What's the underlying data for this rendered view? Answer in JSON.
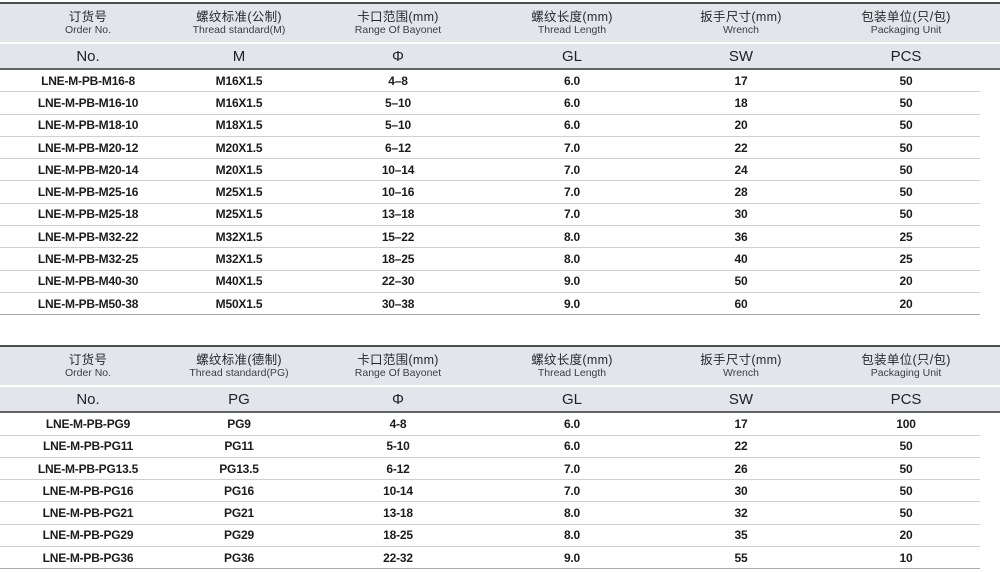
{
  "page": {
    "background": "#ffffff"
  },
  "colors": {
    "header_bg": "#e2e5ea",
    "border_dark": "#4a4c50",
    "border_medium": "#606266",
    "row_separator": "#cdd0d4",
    "table_bottom_line": "#a9adb2",
    "body_text": "#1a1b1d"
  },
  "tables": [
    {
      "name": "metric-thread-table",
      "columns": [
        {
          "cn": "订货号",
          "en": "Order No.",
          "symbol": "No."
        },
        {
          "cn": "螺纹标准(公制)",
          "en": "Thread standard(M)",
          "symbol": "M"
        },
        {
          "cn": "卡口范围(mm)",
          "en": "Range Of Bayonet",
          "symbol": "Φ"
        },
        {
          "cn": "螺纹长度(mm)",
          "en": "Thread Length",
          "symbol": "GL"
        },
        {
          "cn": "扳手尺寸(mm)",
          "en": "Wrench",
          "symbol": "SW"
        },
        {
          "cn": "包装单位(只/包)",
          "en": "Packaging Unit",
          "symbol": "PCS"
        }
      ],
      "rows": [
        [
          "LNE-M-PB-M16-8",
          "M16X1.5",
          "4–8",
          "6.0",
          "17",
          "50"
        ],
        [
          "LNE-M-PB-M16-10",
          "M16X1.5",
          "5–10",
          "6.0",
          "18",
          "50"
        ],
        [
          "LNE-M-PB-M18-10",
          "M18X1.5",
          "5–10",
          "6.0",
          "20",
          "50"
        ],
        [
          "LNE-M-PB-M20-12",
          "M20X1.5",
          "6–12",
          "7.0",
          "22",
          "50"
        ],
        [
          "LNE-M-PB-M20-14",
          "M20X1.5",
          "10–14",
          "7.0",
          "24",
          "50"
        ],
        [
          "LNE-M-PB-M25-16",
          "M25X1.5",
          "10–16",
          "7.0",
          "28",
          "50"
        ],
        [
          "LNE-M-PB-M25-18",
          "M25X1.5",
          "13–18",
          "7.0",
          "30",
          "50"
        ],
        [
          "LNE-M-PB-M32-22",
          "M32X1.5",
          "15–22",
          "8.0",
          "36",
          "25"
        ],
        [
          "LNE-M-PB-M32-25",
          "M32X1.5",
          "18–25",
          "8.0",
          "40",
          "25"
        ],
        [
          "LNE-M-PB-M40-30",
          "M40X1.5",
          "22–30",
          "9.0",
          "50",
          "20"
        ],
        [
          "LNE-M-PB-M50-38",
          "M50X1.5",
          "30–38",
          "9.0",
          "60",
          "20"
        ]
      ]
    },
    {
      "name": "pg-thread-table",
      "columns": [
        {
          "cn": "订货号",
          "en": "Order No.",
          "symbol": "No."
        },
        {
          "cn": "螺纹标准(德制)",
          "en": "Thread standard(PG)",
          "symbol": "PG"
        },
        {
          "cn": "卡口范围(mm)",
          "en": "Range Of Bayonet",
          "symbol": "Φ"
        },
        {
          "cn": "螺纹长度(mm)",
          "en": "Thread Length",
          "symbol": "GL"
        },
        {
          "cn": "扳手尺寸(mm)",
          "en": "Wrench",
          "symbol": "SW"
        },
        {
          "cn": "包装单位(只/包)",
          "en": "Packaging Unit",
          "symbol": "PCS"
        }
      ],
      "rows": [
        [
          "LNE-M-PB-PG9",
          "PG9",
          "4-8",
          "6.0",
          "17",
          "100"
        ],
        [
          "LNE-M-PB-PG11",
          "PG11",
          "5-10",
          "6.0",
          "22",
          "50"
        ],
        [
          "LNE-M-PB-PG13.5",
          "PG13.5",
          "6-12",
          "7.0",
          "26",
          "50"
        ],
        [
          "LNE-M-PB-PG16",
          "PG16",
          "10-14",
          "7.0",
          "30",
          "50"
        ],
        [
          "LNE-M-PB-PG21",
          "PG21",
          "13-18",
          "8.0",
          "32",
          "50"
        ],
        [
          "LNE-M-PB-PG29",
          "PG29",
          "18-25",
          "8.0",
          "35",
          "20"
        ],
        [
          "LNE-M-PB-PG36",
          "PG36",
          "22-32",
          "9.0",
          "55",
          "10"
        ]
      ]
    }
  ]
}
